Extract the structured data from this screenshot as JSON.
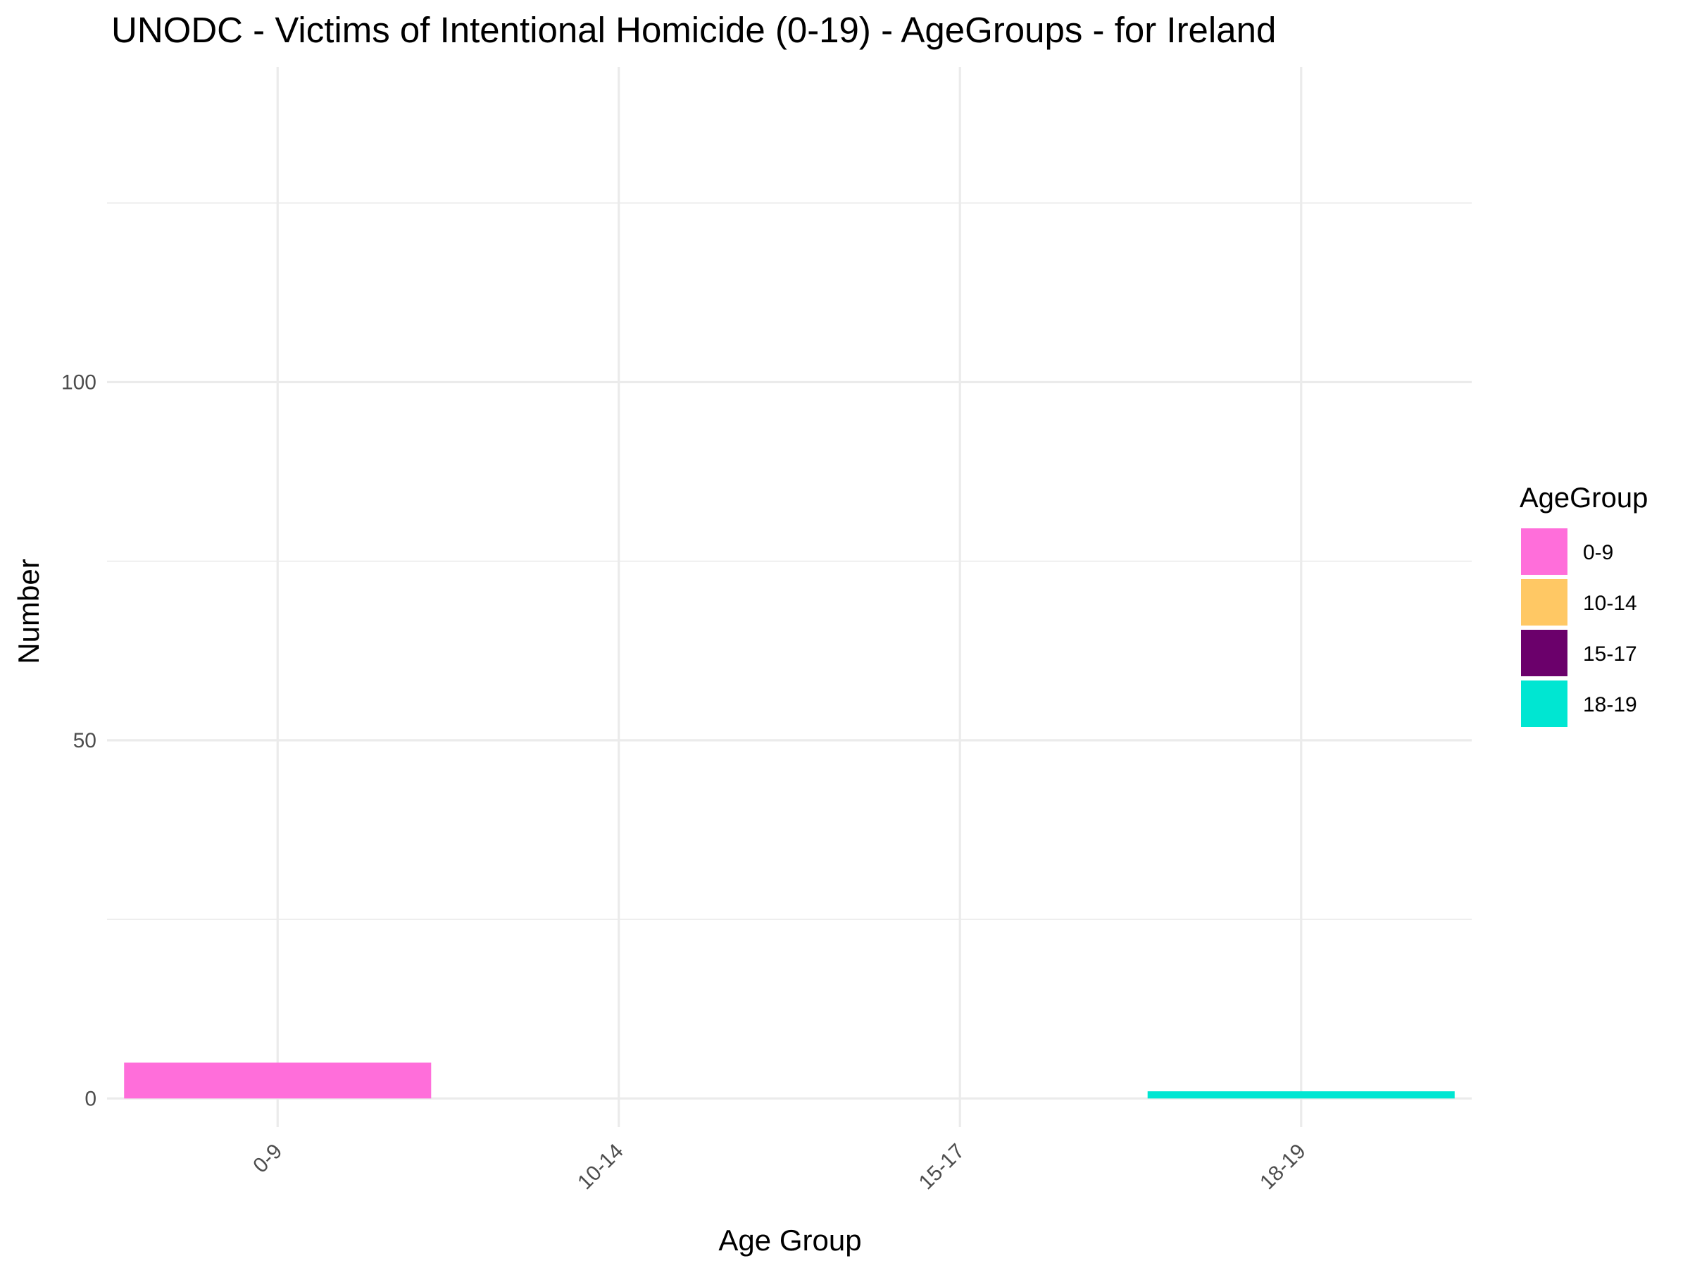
{
  "chart_data": {
    "type": "bar",
    "title": "UNODC - Victims of Intentional Homicide (0-19) - AgeGroups - for Ireland",
    "xlabel": "Age Group",
    "ylabel": "Number",
    "categories": [
      "0-9",
      "10-14",
      "15-17",
      "18-19"
    ],
    "values": [
      5,
      0,
      0,
      1
    ],
    "colors": [
      "#FF6EDA",
      "#FFC864",
      "#6B006B",
      "#00E6D2"
    ],
    "ylim": [
      -4,
      144
    ],
    "yticks": [
      0,
      50,
      100
    ],
    "yticks_minor": [
      25,
      75,
      125
    ],
    "grid": true,
    "legend": {
      "title": "AgeGroup",
      "position": "right",
      "entries": [
        "0-9",
        "10-14",
        "15-17",
        "18-19"
      ]
    }
  }
}
